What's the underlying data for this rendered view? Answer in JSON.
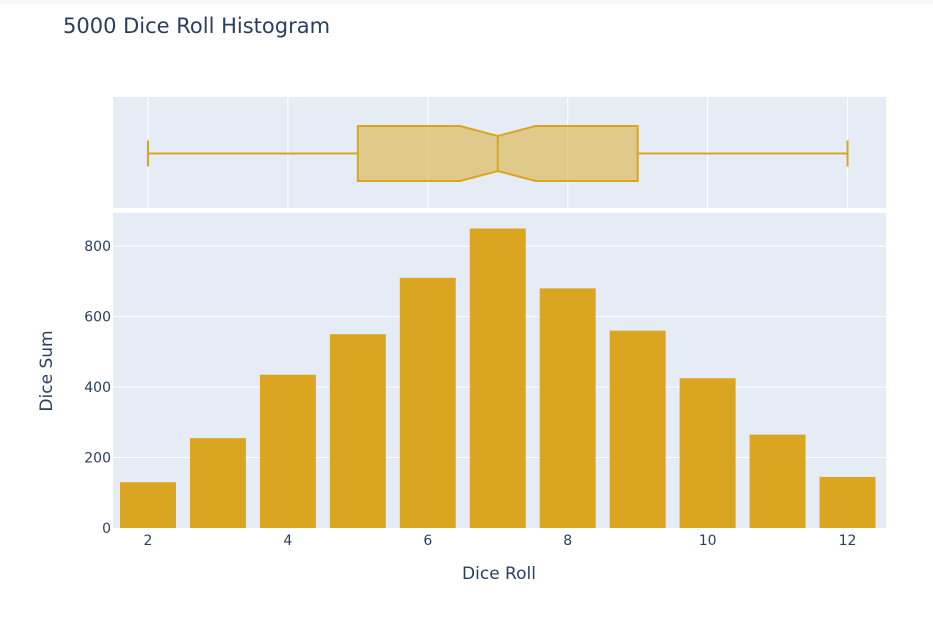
{
  "chart_data": {
    "type": "bar",
    "title": "5000 Dice Roll Histogram",
    "xlabel": "Dice Roll",
    "ylabel": "Dice Sum",
    "categories": [
      2,
      3,
      4,
      5,
      6,
      7,
      8,
      9,
      10,
      11,
      12
    ],
    "values": [
      130,
      255,
      435,
      550,
      710,
      850,
      680,
      560,
      425,
      265,
      145
    ],
    "x_ticks": [
      2,
      4,
      6,
      8,
      10,
      12
    ],
    "y_ticks": [
      0,
      200,
      400,
      600,
      800
    ],
    "xlim": [
      1.5,
      12.55
    ],
    "ylim": [
      0,
      894
    ],
    "grid": true,
    "bar_color": "#DAA520",
    "box_plot": {
      "orientation": "horizontal",
      "notched": true,
      "min": 2,
      "q1": 5,
      "median": 7,
      "q3": 9,
      "max": 12,
      "fill_color": "#DAA520",
      "fill_opacity": 0.5
    },
    "background_color": "#E5ECF6"
  }
}
